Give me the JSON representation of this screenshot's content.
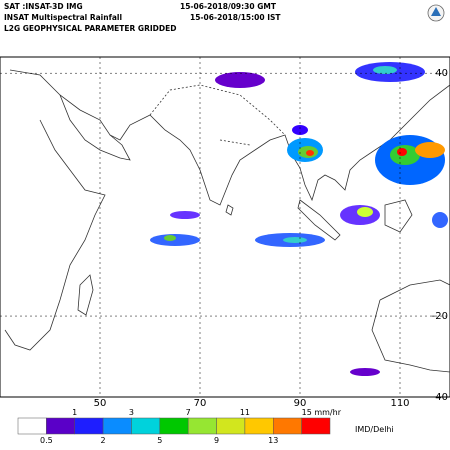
{
  "header": {
    "satellite": "SAT :INSAT-3D IMG",
    "product": "INSAT Multispectral Rainfall",
    "level": "L2G GEOPHYSICAL PARAMETER GRIDDED",
    "time_gmt": "15-06-2018/09:30 GMT",
    "time_ist": "15-06-2018/15:00 IST"
  },
  "map": {
    "lon_range": [
      30,
      120
    ],
    "lat_range": [
      44,
      -40
    ],
    "lon_ticks": [
      50,
      70,
      90,
      110
    ],
    "lat_ticks": [
      40,
      -20,
      -40
    ]
  },
  "legend": {
    "thresholds": [
      0.5,
      1,
      2,
      3,
      5,
      7,
      9,
      11,
      13,
      {
        "value": 15,
        "label": "15 mm/hr"
      }
    ],
    "colors": [
      "#ffffff",
      "#5a00c8",
      "#1e1eff",
      "#0a8cff",
      "#00d2dc",
      "#00c800",
      "#96e632",
      "#d2e61e",
      "#ffc800",
      "#ff7800",
      "#ff0000"
    ],
    "credit": "IMD/Delhi"
  }
}
